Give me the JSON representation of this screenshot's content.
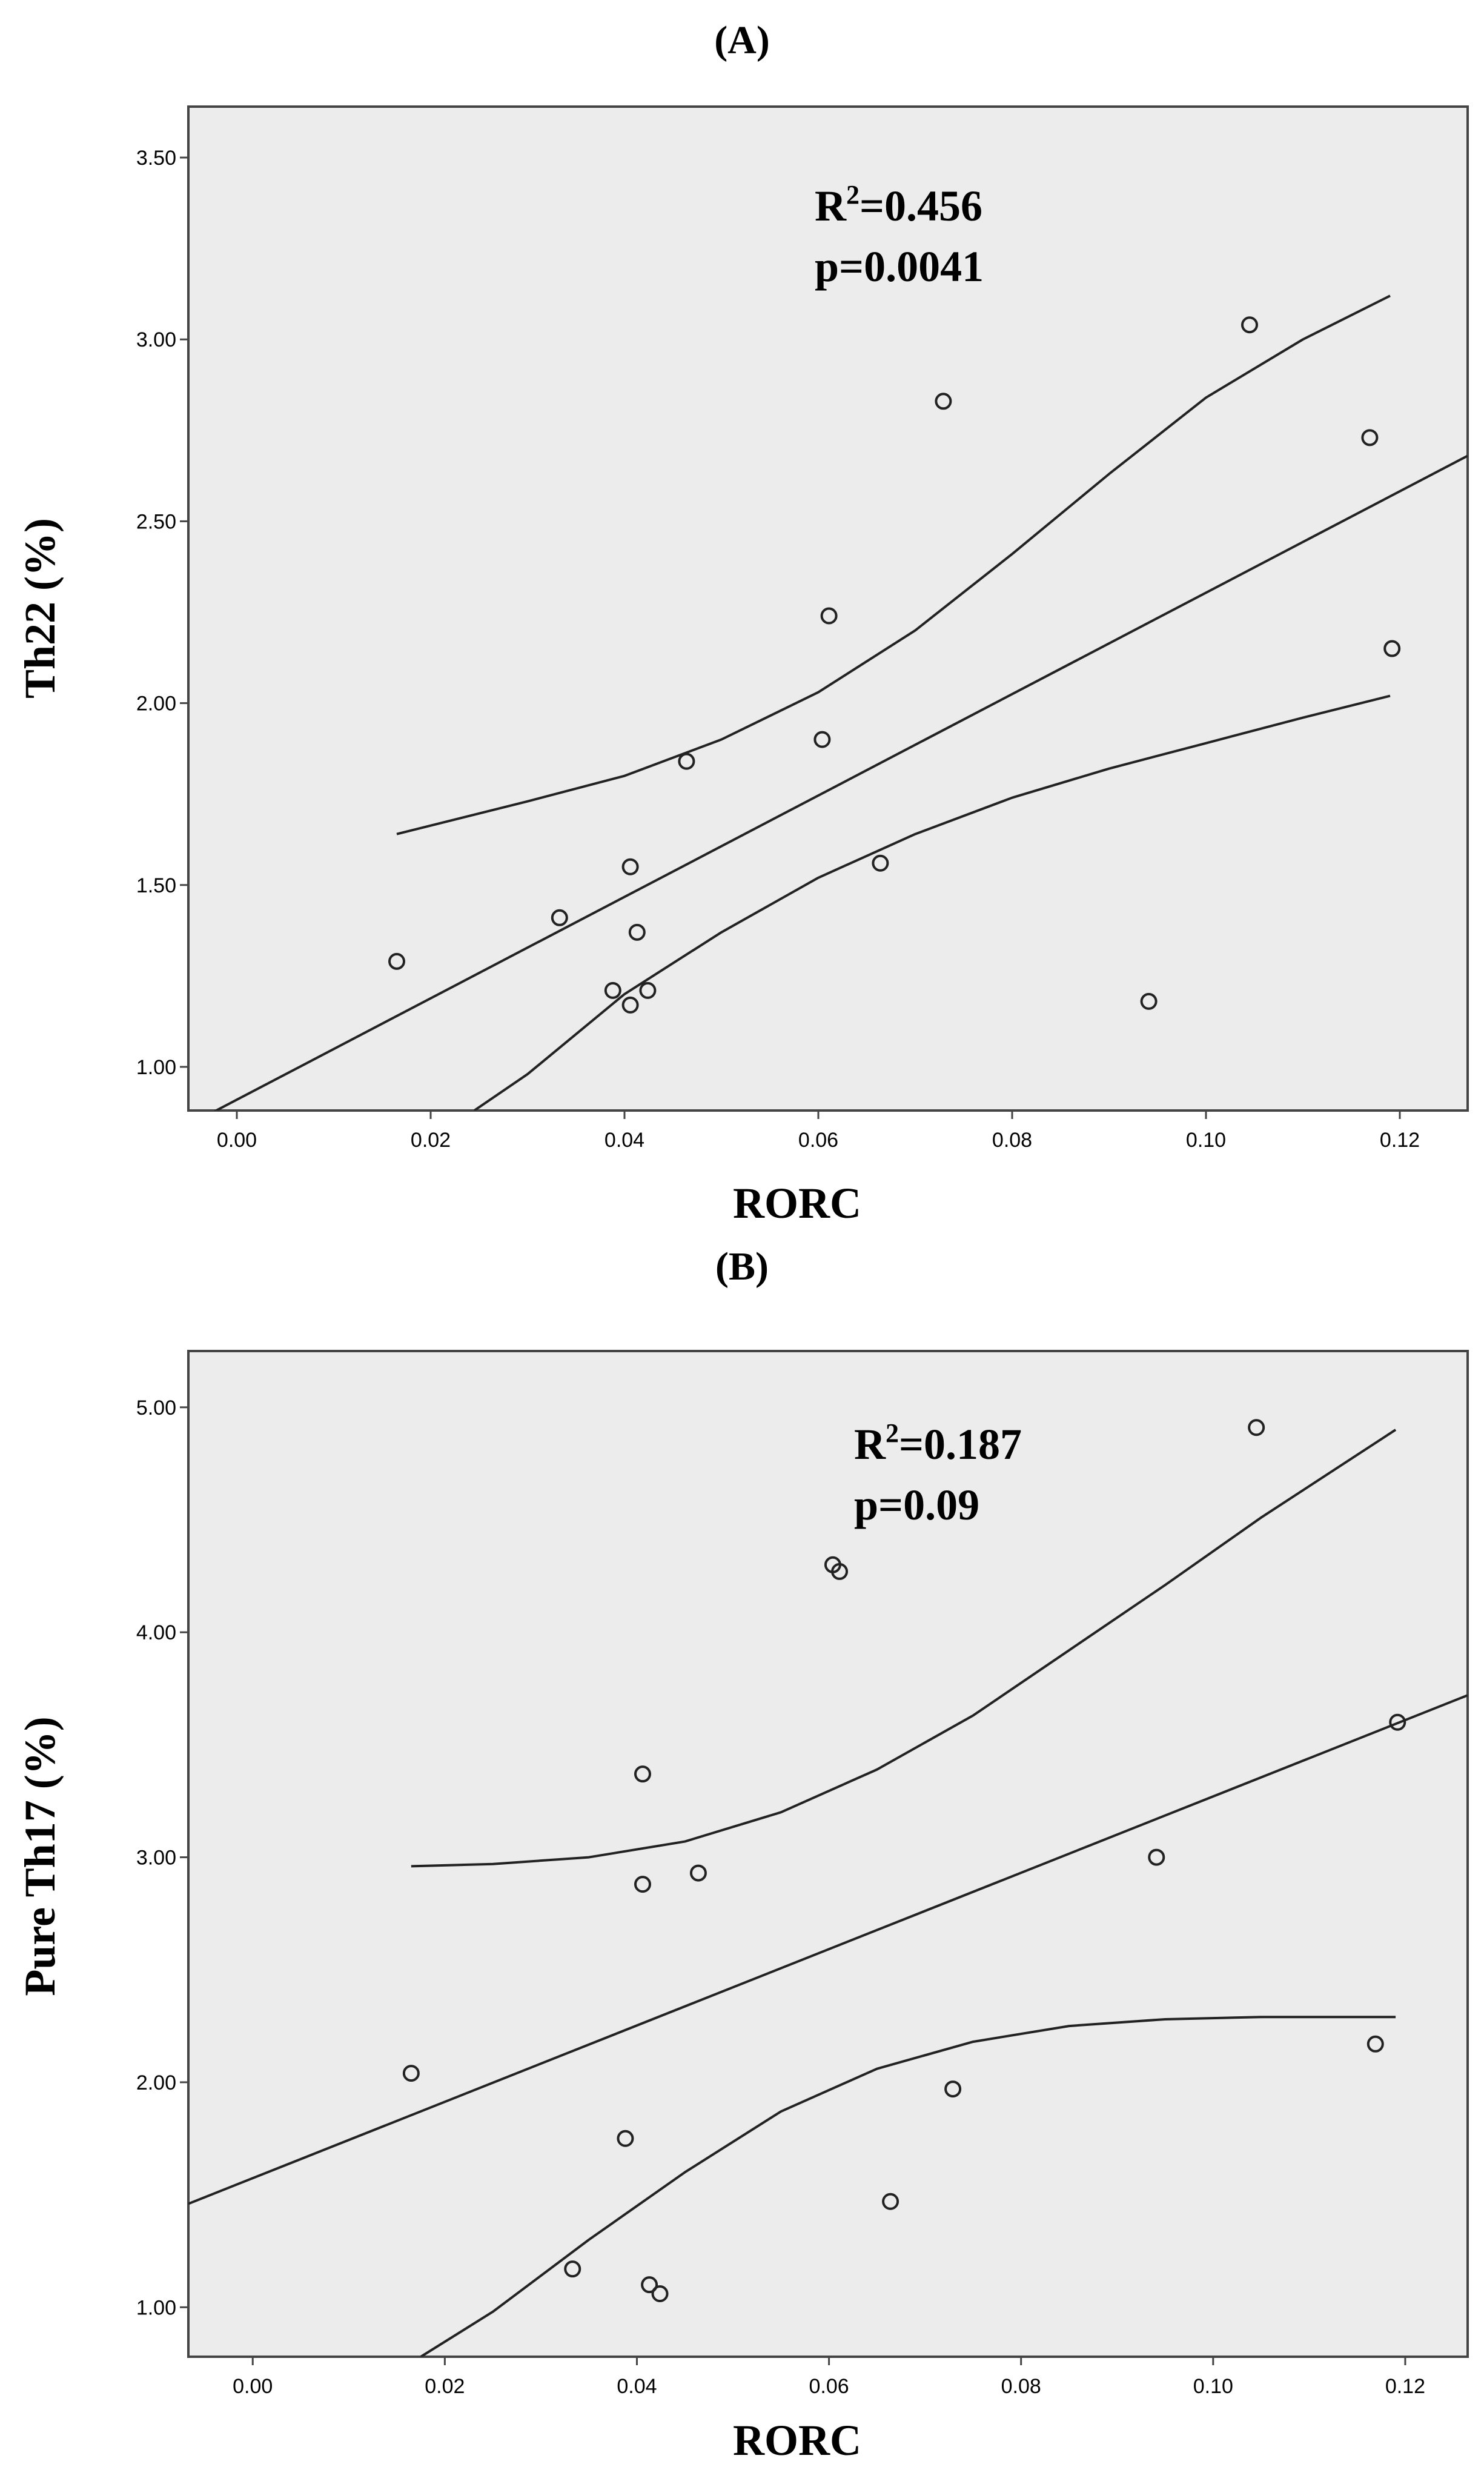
{
  "chart_data": [
    {
      "type": "scatter",
      "panel_label": "(A)",
      "title": "",
      "xlabel": "RORC",
      "ylabel": "Th22 (%)",
      "xlim": [
        -0.005,
        0.127
      ],
      "ylim": [
        0.88,
        3.64
      ],
      "x_ticks": [
        0.0,
        0.02,
        0.04,
        0.06,
        0.08,
        0.1,
        0.12
      ],
      "x_tick_labels": [
        "0.00",
        "0.02",
        "0.04",
        "0.06",
        "0.08",
        "0.10",
        "0.12"
      ],
      "y_ticks": [
        1.0,
        1.5,
        2.0,
        2.5,
        3.0,
        3.5
      ],
      "y_tick_labels": [
        "1.00",
        "1.50",
        "2.00",
        "2.50",
        "3.00",
        "3.50"
      ],
      "grid": false,
      "background": "#ececec",
      "annotation": {
        "r2_label": "R",
        "r2_sup": "2",
        "r2_value": "=0.456",
        "p_text": "p=0.0041"
      },
      "points": [
        {
          "x": 0.0165,
          "y": 1.29
        },
        {
          "x": 0.0333,
          "y": 1.41
        },
        {
          "x": 0.0388,
          "y": 1.21
        },
        {
          "x": 0.0406,
          "y": 1.55
        },
        {
          "x": 0.0406,
          "y": 1.17
        },
        {
          "x": 0.0413,
          "y": 1.37
        },
        {
          "x": 0.0424,
          "y": 1.21
        },
        {
          "x": 0.0464,
          "y": 1.84
        },
        {
          "x": 0.0604,
          "y": 1.9
        },
        {
          "x": 0.0611,
          "y": 2.24
        },
        {
          "x": 0.0664,
          "y": 1.56
        },
        {
          "x": 0.0729,
          "y": 2.83
        },
        {
          "x": 0.0941,
          "y": 1.18
        },
        {
          "x": 0.1045,
          "y": 3.04
        },
        {
          "x": 0.1169,
          "y": 2.73
        },
        {
          "x": 0.1192,
          "y": 2.15
        }
      ],
      "fit_line": {
        "x": [
          -0.005,
          0.127
        ],
        "y": [
          0.84,
          2.68
        ]
      },
      "ci_upper": {
        "x": [
          0.0165,
          0.03,
          0.04,
          0.05,
          0.06,
          0.07,
          0.08,
          0.09,
          0.1,
          0.11,
          0.119
        ],
        "y": [
          1.64,
          1.73,
          1.8,
          1.9,
          2.03,
          2.2,
          2.41,
          2.63,
          2.84,
          3.0,
          3.12
        ]
      },
      "ci_lower": {
        "x": [
          0.0245,
          0.03,
          0.04,
          0.05,
          0.06,
          0.07,
          0.08,
          0.09,
          0.1,
          0.11,
          0.119
        ],
        "y": [
          0.88,
          0.98,
          1.2,
          1.37,
          1.52,
          1.64,
          1.74,
          1.82,
          1.89,
          1.96,
          2.02
        ]
      }
    },
    {
      "type": "scatter",
      "panel_label": "(B)",
      "title": "",
      "xlabel": "RORC",
      "ylabel": "Pure Th17 (%)",
      "xlim": [
        -0.0067,
        0.1265
      ],
      "ylim": [
        0.78,
        5.25
      ],
      "x_ticks": [
        0.0,
        0.02,
        0.04,
        0.06,
        0.08,
        0.1,
        0.12
      ],
      "x_tick_labels": [
        "0.00",
        "0.02",
        "0.04",
        "0.06",
        "0.08",
        "0.10",
        "0.12"
      ],
      "y_ticks": [
        1.0,
        2.0,
        3.0,
        4.0,
        5.0
      ],
      "y_tick_labels": [
        "1.00",
        "2.00",
        "3.00",
        "4.00",
        "5.00"
      ],
      "grid": false,
      "background": "#ececec",
      "annotation": {
        "r2_label": "R",
        "r2_sup": "2",
        "r2_value": "=0.187",
        "p_text": "p=0.09"
      },
      "points": [
        {
          "x": 0.0165,
          "y": 2.04
        },
        {
          "x": 0.0333,
          "y": 1.17
        },
        {
          "x": 0.0388,
          "y": 1.75
        },
        {
          "x": 0.0406,
          "y": 3.37
        },
        {
          "x": 0.0406,
          "y": 2.88
        },
        {
          "x": 0.0413,
          "y": 1.1
        },
        {
          "x": 0.0424,
          "y": 1.06
        },
        {
          "x": 0.0464,
          "y": 2.93
        },
        {
          "x": 0.0604,
          "y": 4.3
        },
        {
          "x": 0.0611,
          "y": 4.27
        },
        {
          "x": 0.0664,
          "y": 1.47
        },
        {
          "x": 0.0729,
          "y": 1.97
        },
        {
          "x": 0.0941,
          "y": 3.0
        },
        {
          "x": 0.1045,
          "y": 4.91
        },
        {
          "x": 0.1169,
          "y": 2.17
        },
        {
          "x": 0.1192,
          "y": 3.6
        }
      ],
      "fit_line": {
        "x": [
          -0.0067,
          0.1265
        ],
        "y": [
          1.46,
          3.72
        ]
      },
      "ci_upper": {
        "x": [
          0.0165,
          0.025,
          0.035,
          0.045,
          0.055,
          0.065,
          0.075,
          0.085,
          0.095,
          0.105,
          0.119
        ],
        "y": [
          2.96,
          2.97,
          3.0,
          3.07,
          3.2,
          3.39,
          3.63,
          3.92,
          4.21,
          4.51,
          4.9
        ]
      },
      "ci_lower": {
        "x": [
          0.0175,
          0.025,
          0.035,
          0.045,
          0.055,
          0.065,
          0.075,
          0.085,
          0.095,
          0.105,
          0.119
        ],
        "y": [
          0.78,
          0.98,
          1.3,
          1.6,
          1.87,
          2.06,
          2.18,
          2.25,
          2.28,
          2.29,
          2.29
        ]
      }
    }
  ]
}
